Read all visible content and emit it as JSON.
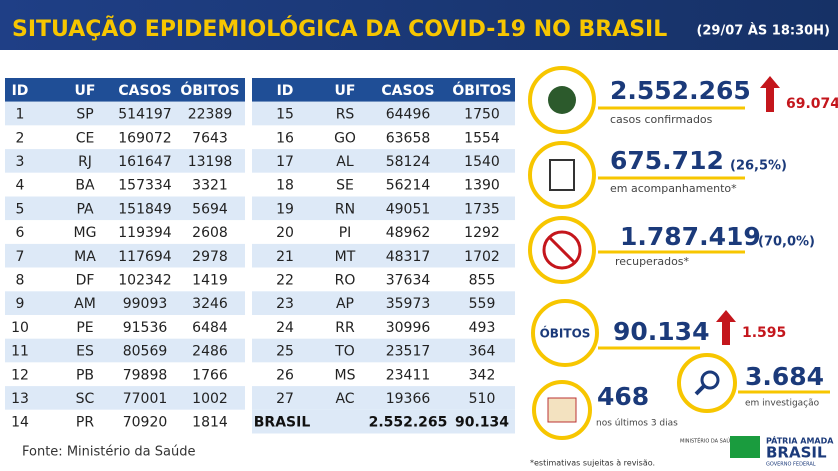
{
  "header": {
    "title": "SITUAÇÃO EPIDEMIOLÓGICA DA COVID-19 NO BRASIL",
    "date": "(29/07 ÀS 18:30H)"
  },
  "tables": [
    {
      "columns": [
        "ID",
        "UF",
        "CASOS",
        "ÓBITOS"
      ],
      "rows": [
        [
          1,
          "SP",
          514197,
          22389
        ],
        [
          2,
          "CE",
          169072,
          7643
        ],
        [
          3,
          "RJ",
          161647,
          13198
        ],
        [
          4,
          "BA",
          157334,
          3321
        ],
        [
          5,
          "PA",
          151849,
          5694
        ],
        [
          6,
          "MG",
          119394,
          2608
        ],
        [
          7,
          "MA",
          117694,
          2978
        ],
        [
          8,
          "DF",
          102342,
          1419
        ],
        [
          9,
          "AM",
          99093,
          3246
        ],
        [
          10,
          "PE",
          91536,
          6484
        ],
        [
          11,
          "ES",
          80569,
          2486
        ],
        [
          12,
          "PB",
          79898,
          1766
        ],
        [
          13,
          "SC",
          77001,
          1002
        ],
        [
          14,
          "PR",
          70920,
          1814
        ]
      ]
    },
    {
      "columns": [
        "ID",
        "UF",
        "CASOS",
        "ÓBITOS"
      ],
      "rows": [
        [
          15,
          "RS",
          64496,
          1750
        ],
        [
          16,
          "GO",
          63658,
          1554
        ],
        [
          17,
          "AL",
          58124,
          1540
        ],
        [
          18,
          "SE",
          56214,
          1390
        ],
        [
          19,
          "RN",
          49051,
          1735
        ],
        [
          20,
          "PI",
          48962,
          1292
        ],
        [
          21,
          "MT",
          48317,
          1702
        ],
        [
          22,
          "RO",
          37634,
          855
        ],
        [
          23,
          "AP",
          35973,
          559
        ],
        [
          24,
          "RR",
          30996,
          493
        ],
        [
          25,
          "TO",
          23517,
          364
        ],
        [
          26,
          "MS",
          23411,
          342
        ],
        [
          27,
          "AC",
          19366,
          510
        ]
      ],
      "total": [
        "BRASIL",
        "2.552.265",
        "90.134"
      ]
    }
  ],
  "stats": {
    "confirmed": {
      "value": "2.552.265",
      "increase": "69.074",
      "label": "casos confirmados"
    },
    "monitoring": {
      "value": "675.712",
      "percent": "(26,5%)",
      "label": "em acompanhamento*"
    },
    "recovered": {
      "value": "1.787.419",
      "percent": "(70,0%)",
      "label": "recuperados*"
    },
    "deaths": {
      "badge": "ÓBITOS",
      "value": "90.134",
      "increase": "1.595"
    },
    "recent": {
      "value": "468",
      "label": "nos últimos 3 dias"
    },
    "investigation": {
      "value": "3.684",
      "label": "em investigação"
    }
  },
  "footer": {
    "source": "Fonte: Ministério da Saúde",
    "note": "*estimativas sujeitas à revisão.",
    "ministry": "MINISTÉRIO DA SAÚDE",
    "slogan": "PÁTRIA AMADA",
    "brand": "BRASIL",
    "gov": "GOVERNO FEDERAL"
  }
}
